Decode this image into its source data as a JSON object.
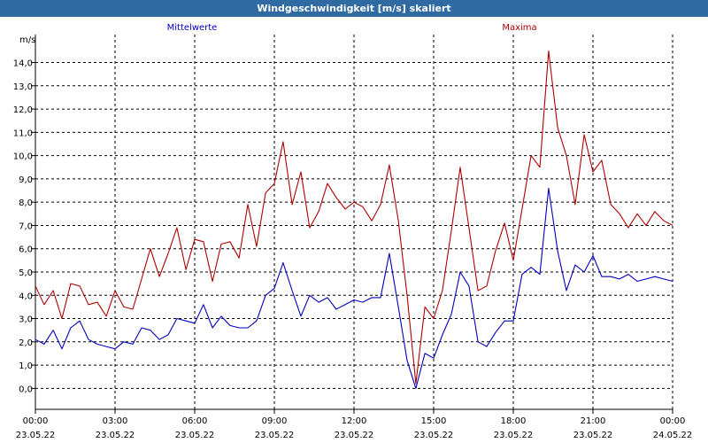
{
  "window": {
    "title": "Windgeschwindigkeit [m/s] skaliert"
  },
  "chart_data": {
    "type": "line",
    "title": "Windgeschwindigkeit [m/s] skaliert",
    "ylabel": "m/s",
    "ylim": [
      -0.9,
      15.2
    ],
    "yticks": [
      "0,0",
      "1,0",
      "2,0",
      "3,0",
      "4,0",
      "5,0",
      "6,0",
      "7,0",
      "8,0",
      "9,0",
      "10,0",
      "11,0",
      "12,0",
      "13,0",
      "14,0"
    ],
    "xticks": [
      {
        "time": "00:00",
        "date": "23.05.22"
      },
      {
        "time": "03:00",
        "date": "23.05.22"
      },
      {
        "time": "06:00",
        "date": "23.05.22"
      },
      {
        "time": "09:00",
        "date": "23.05.22"
      },
      {
        "time": "12:00",
        "date": "23.05.22"
      },
      {
        "time": "15:00",
        "date": "23.05.22"
      },
      {
        "time": "18:00",
        "date": "23.05.22"
      },
      {
        "time": "21:00",
        "date": "23.05.22"
      },
      {
        "time": "00:00",
        "date": "24.05.22"
      }
    ],
    "x_unit": "hours since 23.05.22 00:00",
    "grid": true,
    "legend_placement": "top",
    "series": [
      {
        "name": "Mittelwerte",
        "color": "#0000c0",
        "x": [
          0,
          0.33,
          0.67,
          1,
          1.33,
          1.67,
          2,
          2.33,
          2.67,
          3,
          3.33,
          3.67,
          4,
          4.33,
          4.67,
          5,
          5.33,
          5.67,
          6,
          6.33,
          6.67,
          7,
          7.33,
          7.67,
          8,
          8.33,
          8.67,
          9,
          9.33,
          9.67,
          10,
          10.33,
          10.67,
          11,
          11.33,
          11.67,
          12,
          12.33,
          12.67,
          13,
          13.33,
          13.67,
          14,
          14.33,
          14.67,
          15,
          15.33,
          15.67,
          16,
          16.33,
          16.67,
          17,
          17.33,
          17.67,
          18,
          18.33,
          18.67,
          19,
          19.33,
          19.67,
          20,
          20.33,
          20.67,
          21,
          21.33,
          21.67,
          22,
          22.33,
          22.67,
          23,
          23.33,
          23.67,
          24
        ],
        "y": [
          2.1,
          1.9,
          2.5,
          1.7,
          2.6,
          2.9,
          2.1,
          1.9,
          1.8,
          1.7,
          2.0,
          1.9,
          2.6,
          2.5,
          2.1,
          2.3,
          3.0,
          2.9,
          2.8,
          3.6,
          2.6,
          3.1,
          2.7,
          2.6,
          2.6,
          2.9,
          4.0,
          4.3,
          5.4,
          4.2,
          3.1,
          4.0,
          3.7,
          3.9,
          3.4,
          3.6,
          3.8,
          3.7,
          3.9,
          3.9,
          5.8,
          3.5,
          1.2,
          0.0,
          1.5,
          1.3,
          2.3,
          3.2,
          5.0,
          4.4,
          2.0,
          1.8,
          2.4,
          2.9,
          2.9,
          4.9,
          5.2,
          4.9,
          8.6,
          5.9,
          4.2,
          5.3,
          5.0,
          5.7,
          4.8,
          4.8,
          4.7,
          4.9,
          4.6,
          4.7,
          4.8,
          4.7,
          4.6
        ]
      },
      {
        "name": "Maxima",
        "color": "#b00000",
        "x": [
          0,
          0.33,
          0.67,
          1,
          1.33,
          1.67,
          2,
          2.33,
          2.67,
          3,
          3.33,
          3.67,
          4,
          4.33,
          4.67,
          5,
          5.33,
          5.67,
          6,
          6.33,
          6.67,
          7,
          7.33,
          7.67,
          8,
          8.33,
          8.67,
          9,
          9.33,
          9.67,
          10,
          10.33,
          10.67,
          11,
          11.33,
          11.67,
          12,
          12.33,
          12.67,
          13,
          13.33,
          13.67,
          14,
          14.33,
          14.67,
          15,
          15.33,
          15.67,
          16,
          16.33,
          16.67,
          17,
          17.33,
          17.67,
          18,
          18.33,
          18.67,
          19,
          19.33,
          19.67,
          20,
          20.33,
          20.67,
          21,
          21.33,
          21.67,
          22,
          22.33,
          22.67,
          23,
          23.33,
          23.67,
          24
        ],
        "y": [
          4.4,
          3.6,
          4.2,
          3.0,
          4.5,
          4.4,
          3.6,
          3.7,
          3.1,
          4.2,
          3.5,
          3.4,
          4.7,
          6.0,
          4.8,
          5.8,
          6.9,
          5.1,
          6.4,
          6.3,
          4.6,
          6.2,
          6.3,
          5.6,
          7.9,
          6.1,
          8.4,
          8.8,
          10.6,
          7.9,
          9.3,
          6.9,
          7.6,
          8.8,
          8.2,
          7.7,
          8.0,
          7.8,
          7.2,
          7.9,
          9.6,
          7.2,
          4.0,
          0.2,
          3.5,
          3.0,
          4.2,
          6.8,
          9.5,
          6.9,
          4.2,
          4.4,
          5.9,
          7.1,
          5.5,
          7.7,
          10.0,
          9.5,
          14.5,
          11.2,
          10.0,
          7.9,
          10.9,
          9.3,
          9.8,
          7.9,
          7.5,
          6.9,
          7.5,
          7.0,
          7.6,
          7.2,
          7.0
        ]
      }
    ]
  }
}
